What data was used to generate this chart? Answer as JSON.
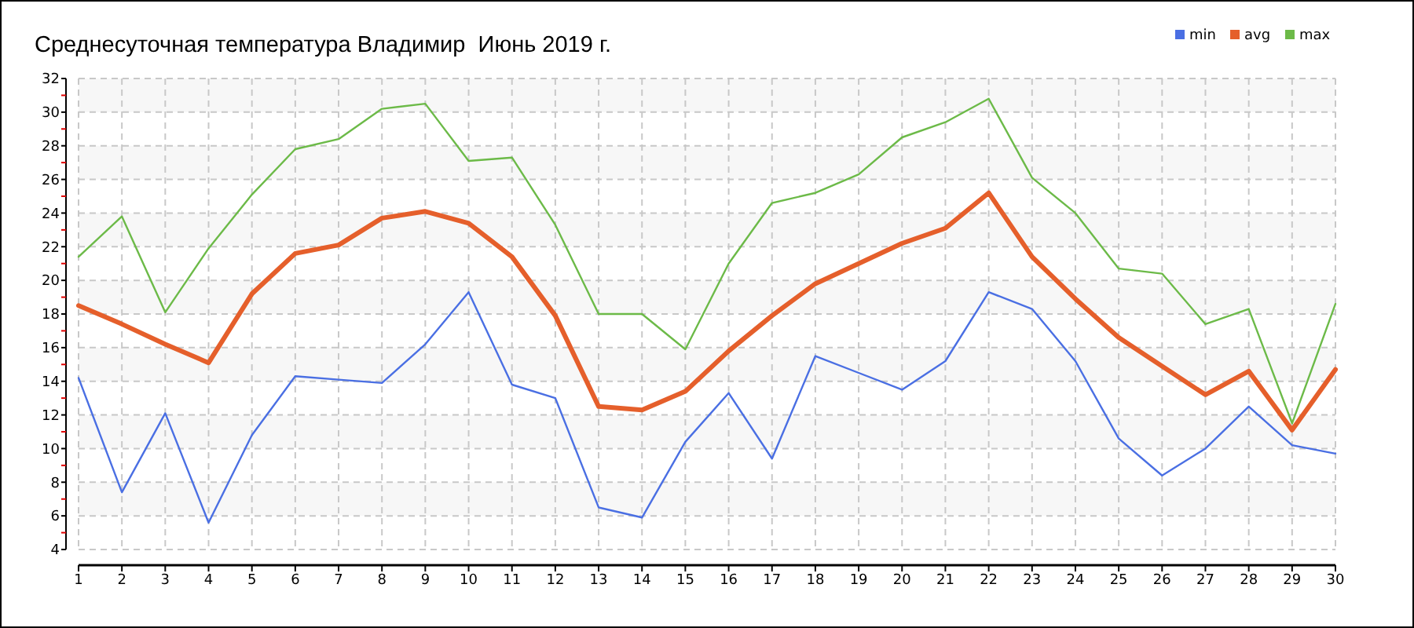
{
  "chart_data": {
    "type": "line",
    "title": "Среднесуточная температура Владимир  Июнь 2019 г.",
    "categories": [
      "1",
      "2",
      "3",
      "4",
      "5",
      "6",
      "7",
      "8",
      "9",
      "10",
      "11",
      "12",
      "13",
      "14",
      "15",
      "16",
      "17",
      "18",
      "19",
      "20",
      "21",
      "22",
      "23",
      "24",
      "25",
      "26",
      "27",
      "28",
      "29",
      "30"
    ],
    "series": [
      {
        "name": "min",
        "color": "#4a6fe3",
        "values": [
          14.2,
          7.4,
          12.1,
          5.6,
          10.8,
          14.3,
          14.1,
          13.9,
          16.2,
          19.3,
          13.8,
          13.0,
          6.5,
          5.9,
          10.4,
          13.3,
          9.4,
          15.5,
          14.5,
          13.5,
          15.2,
          19.3,
          18.3,
          15.2,
          10.6,
          8.4,
          10.0,
          12.5,
          10.2,
          9.7
        ]
      },
      {
        "name": "avg",
        "color": "#e55f2b",
        "values": [
          18.5,
          17.4,
          16.2,
          15.1,
          19.2,
          21.6,
          22.1,
          23.7,
          24.1,
          23.4,
          21.4,
          17.9,
          12.5,
          12.3,
          13.4,
          15.8,
          17.9,
          19.8,
          21.0,
          22.2,
          23.1,
          25.2,
          21.4,
          18.9,
          16.6,
          14.9,
          13.2,
          14.6,
          11.1,
          14.7
        ]
      },
      {
        "name": "max",
        "color": "#6cba48",
        "values": [
          21.4,
          23.8,
          18.1,
          21.9,
          25.1,
          27.8,
          28.4,
          30.2,
          30.5,
          27.1,
          27.3,
          23.3,
          18.0,
          18.0,
          15.9,
          21.0,
          24.6,
          25.2,
          26.3,
          28.5,
          29.4,
          30.8,
          26.1,
          24.0,
          20.7,
          20.4,
          17.4,
          18.3,
          11.5,
          18.6
        ]
      }
    ],
    "ylim": [
      4,
      32
    ],
    "yticks": [
      4,
      {
        "value": 5,
        "label": null
      },
      6,
      {
        "value": 7,
        "label": null
      },
      8,
      {
        "value": 9,
        "label": null
      },
      10,
      {
        "value": 11,
        "label": null
      },
      12,
      {
        "value": 13,
        "label": null
      },
      14,
      {
        "value": 15,
        "label": null
      },
      16,
      {
        "value": 17,
        "label": null
      },
      18,
      {
        "value": 19,
        "label": null
      },
      20,
      {
        "value": 21,
        "label": null
      },
      22,
      {
        "value": 23,
        "label": null
      },
      24,
      {
        "value": 25,
        "label": null
      },
      26,
      {
        "value": 27,
        "label": null
      },
      28,
      {
        "value": 29,
        "label": null
      },
      30,
      {
        "value": 31,
        "label": null
      },
      32
    ],
    "grid": true,
    "legend": "top right"
  }
}
